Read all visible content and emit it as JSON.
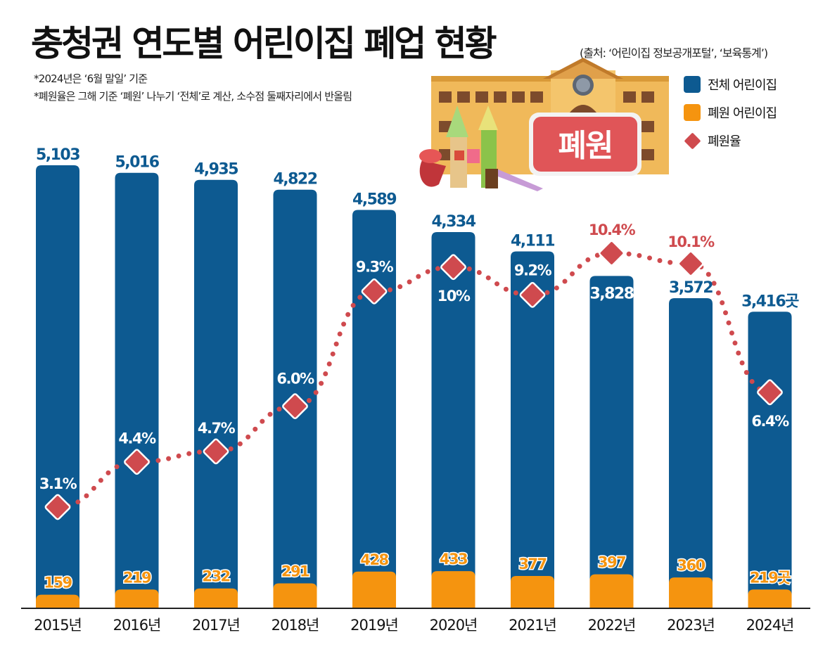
{
  "header": {
    "title": "충청권 연도별 어린이집 폐업 현황",
    "source": "(출처: ‘어린이집 정보공개포털’, ‘보육통계’)",
    "notes": [
      "*2024년은 ‘6월 말일’ 기준",
      "*폐원율은 그해 기준 ‘폐원’ 나누기 ‘전체’로 계산, 소수점 둘째자리에서 반올림"
    ]
  },
  "illustration": {
    "sign_text": "폐원"
  },
  "legend": {
    "total": "전체 어린이집",
    "closed": "폐원 어린이집",
    "rate": "폐원율"
  },
  "colors": {
    "total": "#0d5a91",
    "closed": "#f5940f",
    "rate": "#cf4a4e"
  },
  "chart_data": {
    "type": "bar",
    "title": "충청권 연도별 어린이집 폐업 현황",
    "categories": [
      "2015년",
      "2016년",
      "2017년",
      "2018년",
      "2019년",
      "2020년",
      "2021년",
      "2022년",
      "2023년",
      "2024년"
    ],
    "series": [
      {
        "name": "전체 어린이집",
        "type": "bar",
        "values": [
          5103,
          5016,
          4935,
          4822,
          4589,
          4334,
          4111,
          3828,
          3572,
          3416
        ],
        "labels": [
          "5,103",
          "5,016",
          "4,935",
          "4,822",
          "4,589",
          "4,334",
          "4,111",
          "3,828",
          "3,572",
          "3,416곳"
        ]
      },
      {
        "name": "폐원 어린이집",
        "type": "bar",
        "values": [
          159,
          219,
          232,
          291,
          428,
          433,
          377,
          397,
          360,
          219
        ],
        "labels": [
          "159",
          "219",
          "232",
          "291",
          "428",
          "433",
          "377",
          "397",
          "360",
          "219곳"
        ]
      },
      {
        "name": "폐원율",
        "type": "line",
        "unit": "%",
        "values": [
          3.1,
          4.4,
          4.7,
          6.0,
          9.3,
          10,
          9.2,
          10.4,
          10.1,
          6.4
        ],
        "labels": [
          "3.1%",
          "4.4%",
          "4.7%",
          "6.0%",
          "9.3%",
          "10%",
          "9.2%",
          "10.4%",
          "10.1%",
          "6.4%"
        ]
      }
    ],
    "xlabel": "",
    "ylabel": "",
    "ylim": [
      0,
      5103
    ],
    "grid": false,
    "legend_position": "top-right"
  }
}
